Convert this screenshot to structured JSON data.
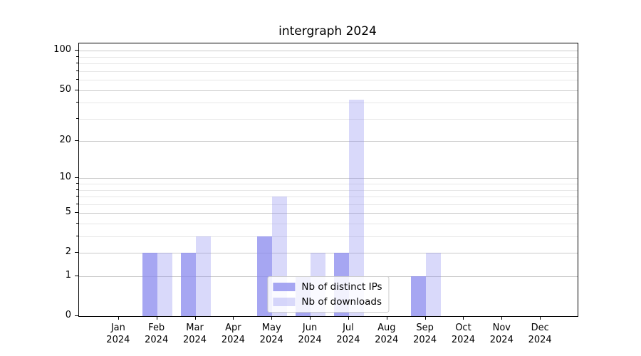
{
  "title": "intergraph 2024",
  "chart_data": {
    "type": "bar",
    "title": "intergraph 2024",
    "categories": [
      "Jan",
      "Feb",
      "Mar",
      "Apr",
      "May",
      "Jun",
      "Jul",
      "Aug",
      "Sep",
      "Oct",
      "Nov",
      "Dec"
    ],
    "category_year": "2024",
    "series": [
      {
        "name": "Nb of distinct IPs",
        "color": "rgba(136,136,238,0.75)",
        "values": [
          0,
          2,
          2,
          0,
          3,
          1,
          2,
          0,
          1,
          0,
          0,
          0
        ]
      },
      {
        "name": "Nb of downloads",
        "color": "rgba(136,136,238,0.32)",
        "values": [
          0,
          2,
          3,
          0,
          7,
          2,
          42,
          0,
          2,
          0,
          0,
          0
        ]
      }
    ],
    "yscale": "log1p",
    "ylim": [
      0,
      114
    ],
    "yticks": [
      0,
      1,
      2,
      5,
      10,
      20,
      50,
      100
    ],
    "yticks_minor": [
      3,
      4,
      6,
      7,
      8,
      9,
      30,
      40,
      60,
      70,
      80,
      90
    ],
    "grid": "on",
    "legend_position": "lower center"
  },
  "colors": {
    "bar_base": "#8888ee",
    "major_grid": "#c9c9c9",
    "minor_grid": "#e7e7e7",
    "spine": "#000000",
    "background": "#ffffff"
  }
}
